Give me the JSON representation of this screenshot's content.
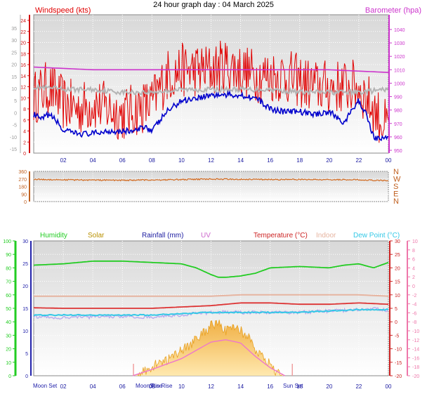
{
  "title": "24 hour graph day : 04 March 2025",
  "colors": {
    "wind": "#e00000",
    "gust_axis": "#d01010",
    "barometer": "#cc33cc",
    "avg_wind": "#0000cc",
    "gray_line": "#b4b4b4",
    "direction": "#d2691e",
    "direction_axis": "#c06020",
    "humidity": "#22cc22",
    "solar": "#b89000",
    "rain": "#1a1aa0",
    "uv": "#cc66cc",
    "temperature": "#cc2222",
    "indoor": "#e6b4a0",
    "dewpoint": "#33c8e6",
    "apparent": "#b8aaee",
    "rain_axis": "#2222aa",
    "solar_fill": "#f5c060",
    "solar_line": "#ee77cc",
    "panel_fill": "#dcdcdc"
  },
  "time_ticks": [
    "02",
    "04",
    "06",
    "08",
    "10",
    "12",
    "14",
    "16",
    "18",
    "20",
    "22",
    "00"
  ],
  "chart_data": [
    {
      "type": "line",
      "title": "",
      "x_unit": "hour",
      "xlim": [
        0,
        24
      ],
      "left_axis": {
        "label": "Windspeed (kts)",
        "ticks": [
          "2",
          "4",
          "6",
          "8",
          "10",
          "12",
          "14",
          "16",
          "18",
          "20",
          "22",
          "24"
        ]
      },
      "left_axis_2": {
        "ticks": [
          "-15",
          "-10",
          "-5",
          "0",
          "5",
          "10",
          "15",
          "20",
          "25",
          "30",
          "35"
        ]
      },
      "right_axis": {
        "label": "Barometer (hpa)",
        "ticks": [
          "950",
          "960",
          "970",
          "980",
          "990",
          "1000",
          "1010",
          "1020",
          "1030",
          "1040"
        ]
      },
      "grid": true,
      "series": [
        {
          "name": "Windspeed (kts)",
          "axis": "kts",
          "x": [
            0,
            1,
            2,
            3,
            4,
            5,
            6,
            7,
            8,
            9,
            10,
            11,
            12,
            13,
            14,
            15,
            16,
            17,
            18,
            19,
            20,
            21,
            22,
            23,
            24
          ],
          "y": [
            10,
            12,
            9,
            8,
            9,
            8,
            7,
            8,
            9,
            14,
            15,
            15,
            15,
            16,
            15,
            14,
            14,
            14,
            13,
            12,
            12,
            12,
            12,
            8,
            4
          ]
        },
        {
          "name": "",
          "axis": "kts",
          "x": [
            0,
            0.5,
            1,
            1.5,
            2,
            3,
            4,
            5,
            6,
            7,
            7.5,
            8,
            9,
            10,
            11,
            12,
            13,
            14,
            15,
            16,
            17,
            18,
            19,
            20,
            21,
            22,
            22.5,
            23,
            23.5,
            24
          ],
          "y": [
            7,
            6,
            7,
            6,
            4,
            3.5,
            3.5,
            4,
            4,
            4,
            5,
            4,
            7.5,
            9.5,
            10,
            10.5,
            10.5,
            10.5,
            10,
            8,
            7.5,
            7.5,
            7,
            7.5,
            5.5,
            9.5,
            7,
            3,
            2.5,
            3
          ]
        },
        {
          "name": "",
          "axis": "kts",
          "x": [
            0,
            2,
            4,
            6,
            8,
            10,
            12,
            14,
            16,
            18,
            20,
            22,
            24
          ],
          "y": [
            12,
            11.5,
            11.5,
            11,
            11,
            11.5,
            11.5,
            11.5,
            11.5,
            11,
            11,
            11,
            11.5
          ]
        },
        {
          "name": "Barometer (hpa)",
          "axis": "hpa",
          "x": [
            0,
            2,
            4,
            6,
            8,
            10,
            12,
            14,
            16,
            18,
            20,
            22,
            24
          ],
          "y": [
            1012,
            1011,
            1010,
            1010,
            1010,
            1010,
            1010,
            1010,
            1010,
            1010,
            1010,
            1009,
            1008
          ]
        }
      ]
    },
    {
      "type": "line",
      "title": "",
      "x_unit": "hour",
      "xlim": [
        0,
        24
      ],
      "left_axis": {
        "ticks": [
          "0",
          "90",
          "180",
          "270",
          "360"
        ]
      },
      "right_axis": {
        "ticks": [
          "N",
          "W",
          "S",
          "E",
          "N"
        ]
      },
      "series": [
        {
          "name": "",
          "x": [
            0,
            2,
            4,
            6,
            8,
            10,
            12,
            14,
            16,
            18,
            20,
            22,
            24
          ],
          "y": [
            265,
            260,
            256,
            254,
            258,
            262,
            268,
            266,
            262,
            263,
            262,
            260,
            248
          ]
        }
      ]
    },
    {
      "type": "line",
      "title": "",
      "x_unit": "hour",
      "xlim": [
        0,
        24
      ],
      "axes_ticks": {
        "humidity": [
          "0",
          "10",
          "20",
          "30",
          "40",
          "50",
          "60",
          "70",
          "80",
          "90",
          "100"
        ],
        "solar": [
          "0",
          "5",
          "10",
          "15",
          "20",
          "25",
          "30"
        ],
        "rain": [
          "0",
          "5",
          "10",
          "15",
          "20",
          "25",
          "30"
        ],
        "temperature": [
          "-20",
          "-15",
          "-10",
          "-5",
          "0",
          "5",
          "10",
          "15",
          "20",
          "25",
          "30"
        ],
        "uv": [
          "-20",
          "-18",
          "-16",
          "-14",
          "-12",
          "-10",
          "-8",
          "-6",
          "-4",
          "-2",
          "0",
          "2",
          "4",
          "6",
          "8",
          "10"
        ]
      },
      "legend": [
        "Humidity",
        "Solar",
        "Rainfall (mm)",
        "UV",
        "Temperature (°C)",
        "Indoor",
        "Dew Point (°C)"
      ],
      "event_labels": [
        "Moon Set",
        "Moon Rise",
        "Sun Rise",
        "Sun Set"
      ],
      "series": [
        {
          "name": "Humidity",
          "axis": "%",
          "x": [
            0,
            2,
            4,
            6,
            8,
            10,
            11,
            12,
            12.5,
            13,
            14,
            15,
            16,
            18,
            20,
            21,
            22,
            23,
            24
          ],
          "y": [
            82,
            83,
            85,
            85,
            84,
            83,
            80,
            75,
            73,
            73,
            74,
            76,
            80,
            81,
            80,
            82,
            83,
            80,
            84
          ]
        },
        {
          "name": "Temperature (°C)",
          "axis": "°C",
          "x": [
            0,
            2,
            4,
            6,
            8,
            10,
            12,
            14,
            16,
            18,
            20,
            22,
            24
          ],
          "y": [
            5.2,
            5,
            5,
            5,
            5,
            5.5,
            6,
            7,
            7,
            6.5,
            6.5,
            7,
            6.5
          ]
        },
        {
          "name": "Indoor",
          "axis": "°C",
          "x": [
            0,
            2,
            4,
            6,
            8,
            10,
            12,
            14,
            16,
            18,
            20,
            22,
            24
          ],
          "y": [
            9.5,
            9.5,
            9.5,
            9.5,
            9.5,
            9.5,
            9.5,
            10,
            10,
            10,
            10,
            10,
            9.5
          ]
        },
        {
          "name": "Dew Point (°C)",
          "axis": "°C",
          "x": [
            0,
            2,
            4,
            6,
            8,
            10,
            12,
            14,
            16,
            18,
            20,
            22,
            24
          ],
          "y": [
            2.5,
            2.5,
            2.5,
            2.5,
            2.5,
            3,
            3.5,
            3.5,
            3.5,
            3.5,
            4,
            4.5,
            4.5
          ]
        },
        {
          "name": "",
          "axis": "°C",
          "x": [
            0,
            2,
            4,
            6,
            8,
            10,
            12,
            14,
            16,
            18,
            20,
            22,
            23,
            24
          ],
          "y": [
            2,
            1.5,
            1.8,
            2,
            1.8,
            2.5,
            3.5,
            3.5,
            3.5,
            3.5,
            4,
            4.5,
            5,
            4
          ]
        },
        {
          "name": "Solar",
          "axis": "solar",
          "x": [
            6.7,
            7,
            8,
            9,
            10,
            11,
            12,
            12.5,
            13,
            13.5,
            14,
            14.5,
            15,
            15.5,
            16,
            16.5,
            17
          ],
          "y": [
            0,
            0.3,
            2,
            3.5,
            5.5,
            8,
            11,
            12,
            10,
            11,
            10,
            8.5,
            6,
            4,
            2.5,
            0.8,
            0
          ]
        },
        {
          "name": "UV",
          "axis": "uv",
          "x": [
            6.7,
            8,
            10,
            12,
            13,
            14,
            15,
            16,
            17
          ],
          "y": [
            -20,
            -18.6,
            -16.2,
            -12.5,
            -12,
            -12.7,
            -15.7,
            -18.2,
            -20
          ]
        }
      ]
    }
  ]
}
